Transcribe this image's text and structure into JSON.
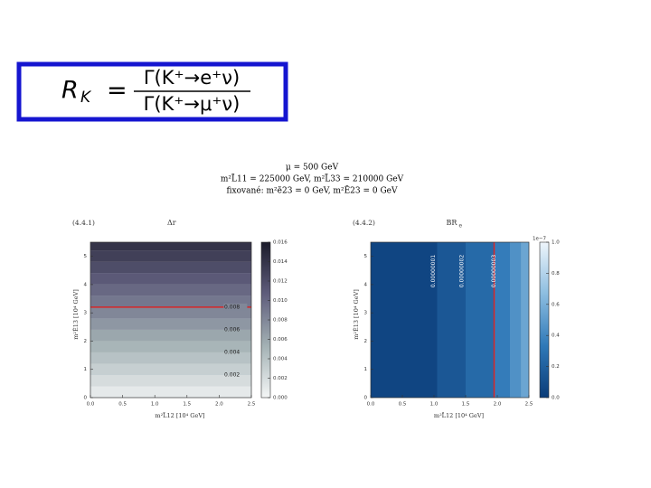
{
  "formula": {
    "lhs": "R",
    "lhs_sub": "K",
    "equals": "=",
    "numerator": "Γ(K⁺→e⁺ν)",
    "denominator": "Γ(K⁺→μ⁺ν)"
  },
  "header": [
    "μ = 500 GeV",
    "m²L̃11 = 225000 GeV, m²L̃33 = 210000 GeV",
    "fixované: m²ẽ23 = 0 GeV, m²Ẽ23 = 0 GeV"
  ],
  "chart_data": [
    {
      "type": "contour",
      "label": "(4.4.1)",
      "title": "Δr",
      "x_label": "m²L̃12   [10⁴ GeV]",
      "y_label": "m²Ẽ13   [10⁴ GeV]",
      "xlim": [
        0,
        2.5
      ],
      "xticks": [
        {
          "value": 0,
          "label": "0.0"
        },
        {
          "value": 0.5,
          "label": "0.5"
        },
        {
          "value": 1,
          "label": "1.0"
        },
        {
          "value": 1.5,
          "label": "1.5"
        },
        {
          "value": 2,
          "label": "2.0"
        },
        {
          "value": 2.5,
          "label": "2.5"
        }
      ],
      "ylim": [
        0,
        5.5
      ],
      "yticks": [
        0,
        1,
        2,
        3,
        4,
        5
      ],
      "bands": {
        "axis": "y",
        "edges": [
          0,
          0.4,
          0.8,
          1.2,
          1.6,
          2.0,
          2.4,
          2.8,
          3.2,
          3.6,
          4.0,
          4.4,
          4.8,
          5.2,
          5.5
        ],
        "levels": [
          0.001,
          0.002,
          0.003,
          0.004,
          0.005,
          0.006,
          0.007,
          0.008,
          0.009,
          0.01,
          0.011,
          0.012,
          0.013,
          0.014
        ]
      },
      "clim": [
        0,
        0.016
      ],
      "cticks": [
        {
          "value": 0,
          "label": "0.000"
        },
        {
          "value": 0.002,
          "label": "0.002"
        },
        {
          "value": 0.004,
          "label": "0.004"
        },
        {
          "value": 0.006,
          "label": "0.006"
        },
        {
          "value": 0.008,
          "label": "0.008"
        },
        {
          "value": 0.01,
          "label": "0.010"
        },
        {
          "value": 0.012,
          "label": "0.012"
        },
        {
          "value": 0.014,
          "label": "0.014"
        },
        {
          "value": 0.016,
          "label": "0.016"
        }
      ],
      "cmap": [
        "#f4f6f6",
        "#a3b1b4",
        "#5f5d7c",
        "#1b1b2a"
      ],
      "contour_lines": [
        {
          "value": 0.008,
          "label": "0.008",
          "at": 3.2,
          "color": "#d62728"
        }
      ],
      "contour_labels": [
        {
          "value": 0.006,
          "label": "0.006",
          "at": 2.4
        },
        {
          "value": 0.004,
          "label": "0.004",
          "at": 1.6
        },
        {
          "value": 0.002,
          "label": "0.002",
          "at": 0.8
        }
      ]
    },
    {
      "type": "contour",
      "label": "(4.4.2)",
      "title": "BR",
      "title_sub": "e",
      "x_label": "m²L̃12   [10⁴ GeV]",
      "y_label": "m²Ẽ13   [10⁴ GeV]",
      "xlim": [
        0,
        2.5
      ],
      "xticks": [
        {
          "value": 0,
          "label": "0.0"
        },
        {
          "value": 0.5,
          "label": "0.5"
        },
        {
          "value": 1,
          "label": "1.0"
        },
        {
          "value": 1.5,
          "label": "1.5"
        },
        {
          "value": 2,
          "label": "2.0"
        },
        {
          "value": 2.5,
          "label": "2.5"
        }
      ],
      "ylim": [
        0,
        5.5
      ],
      "yticks": [
        0,
        1,
        2,
        3,
        4,
        5
      ],
      "bands": {
        "axis": "x",
        "edges": [
          0,
          1.05,
          1.5,
          1.95,
          2.2,
          2.38,
          2.5
        ],
        "levels": [
          0.05,
          0.15,
          0.25,
          0.35,
          0.45,
          0.55
        ]
      },
      "clim": [
        0,
        1.0
      ],
      "coffset": "1e−7",
      "cticks": [
        {
          "value": 0,
          "label": "0.0"
        },
        {
          "value": 0.2,
          "label": "0.2"
        },
        {
          "value": 0.4,
          "label": "0.4"
        },
        {
          "value": 0.6,
          "label": "0.6"
        },
        {
          "value": 0.8,
          "label": "0.8"
        },
        {
          "value": 1,
          "label": "1.0"
        }
      ],
      "cmap": [
        "#0b3c78",
        "#2f79b8",
        "#8cbde0",
        "#eef5fb"
      ],
      "contour_lines": [
        {
          "value": 0.3,
          "label": "0.00000003",
          "at": 1.95,
          "color": "#d62728"
        }
      ],
      "contour_labels": [
        {
          "value": 0.1,
          "label": "0.00000001",
          "at": 1.05
        },
        {
          "value": 0.2,
          "label": "0.00000002",
          "at": 1.5
        }
      ]
    }
  ]
}
